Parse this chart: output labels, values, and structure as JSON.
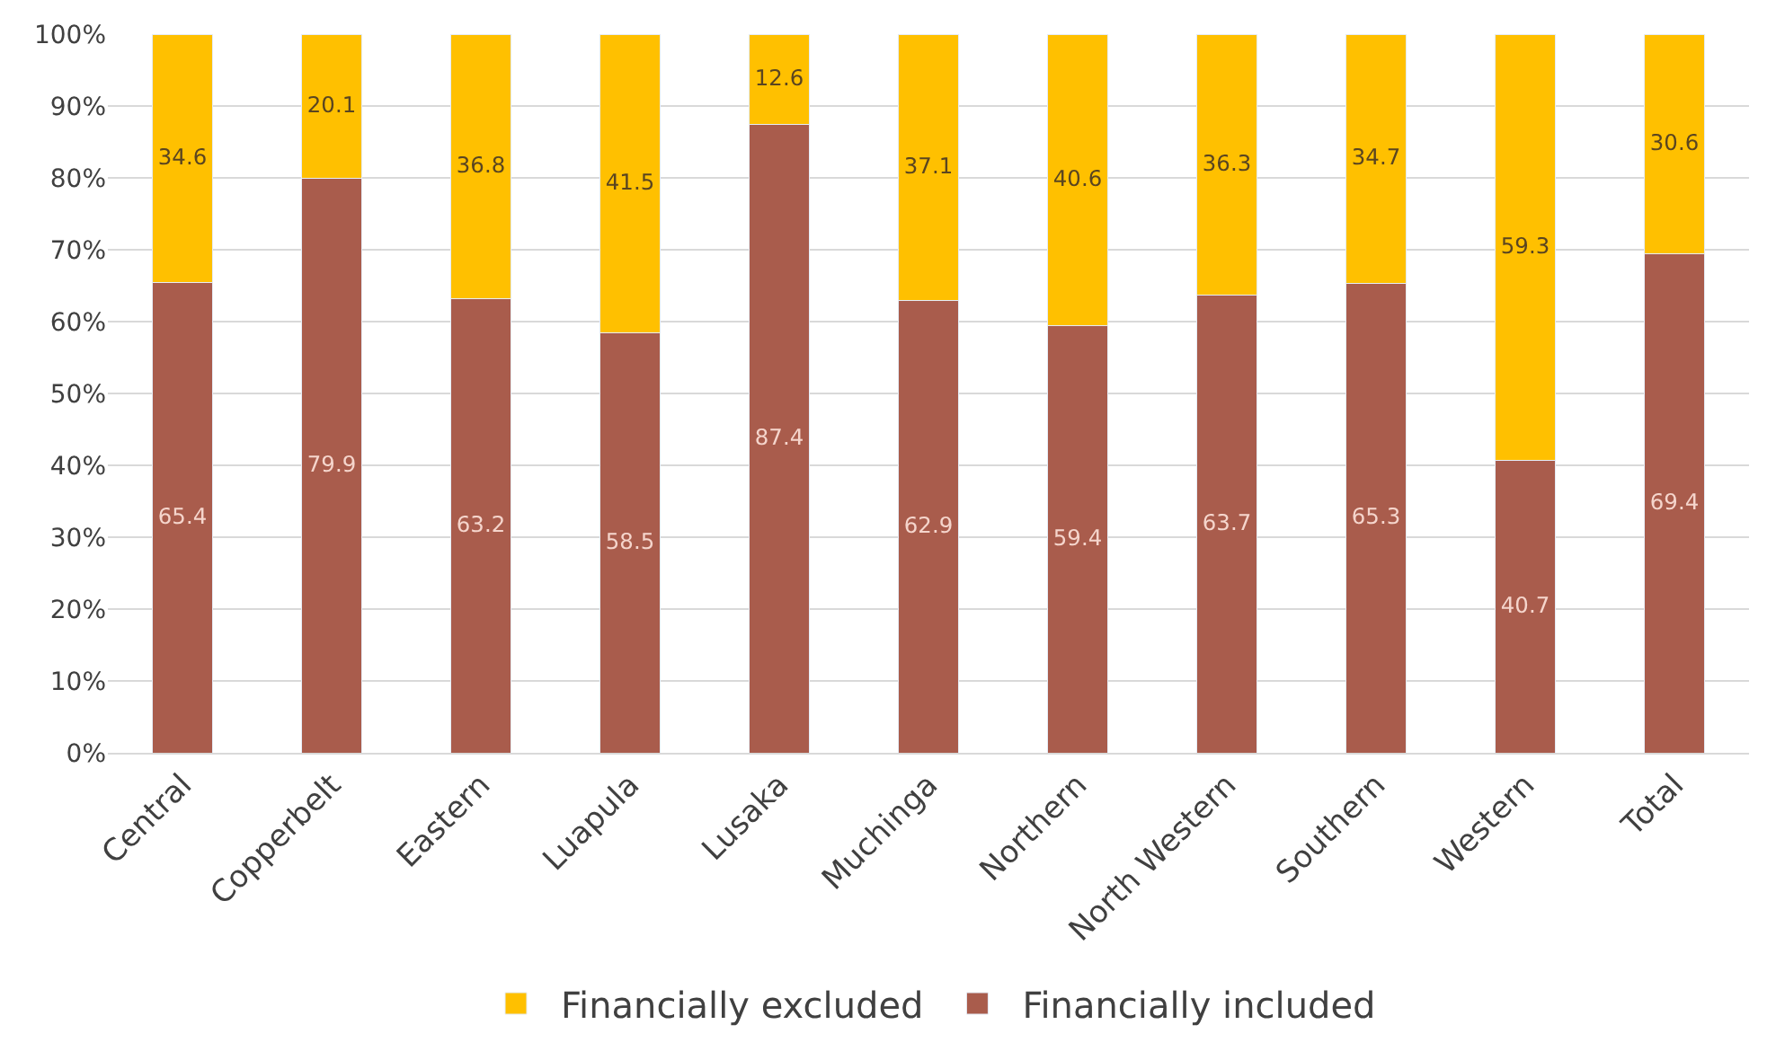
{
  "chart_data": {
    "type": "bar",
    "stacked": true,
    "categories": [
      "Central",
      "Copperbelt",
      "Eastern",
      "Luapula",
      "Lusaka",
      "Muchinga",
      "Northern",
      "North Western",
      "Southern",
      "Western",
      "Total"
    ],
    "series": [
      {
        "name": "Financially included",
        "color": "#a95c4c",
        "values": [
          65.4,
          79.9,
          63.2,
          58.5,
          87.4,
          62.9,
          59.4,
          63.7,
          65.3,
          40.7,
          69.4
        ]
      },
      {
        "name": "Financially excluded",
        "color": "#ffc000",
        "values": [
          34.6,
          20.1,
          36.8,
          41.5,
          12.6,
          37.1,
          40.6,
          36.3,
          34.7,
          59.3,
          30.6
        ]
      }
    ],
    "data_labels": true,
    "ylim": [
      0,
      100
    ],
    "yticks": [
      {
        "value": 0,
        "label": "0%"
      },
      {
        "value": 10,
        "label": "10%"
      },
      {
        "value": 20,
        "label": "20%"
      },
      {
        "value": 30,
        "label": "30%"
      },
      {
        "value": 40,
        "label": "40%"
      },
      {
        "value": 50,
        "label": "50%"
      },
      {
        "value": 60,
        "label": "60%"
      },
      {
        "value": 70,
        "label": "70%"
      },
      {
        "value": 80,
        "label": "80%"
      },
      {
        "value": 90,
        "label": "90%"
      },
      {
        "value": 100,
        "label": "100%"
      }
    ],
    "grid": "y",
    "legend": "bottom"
  }
}
